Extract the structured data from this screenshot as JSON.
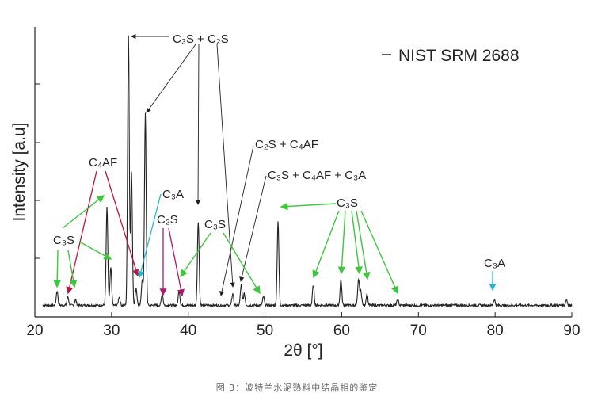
{
  "caption": "图 3：波特兰水泥熟料中结晶相的鉴定",
  "chart_data": {
    "type": "line",
    "title": "",
    "xlabel": "2θ [°]",
    "ylabel": "Intensity [a.u]",
    "xlim": [
      20,
      90
    ],
    "ylim": [
      0,
      100
    ],
    "xticks": [
      20,
      30,
      40,
      50,
      60,
      70,
      80,
      90
    ],
    "grid": false,
    "legend": {
      "position": "top-right",
      "entries": [
        "NIST SRM 2688"
      ]
    },
    "series": [
      {
        "name": "NIST SRM 2688",
        "baseline": 4,
        "peaks": [
          [
            22.9,
            9
          ],
          [
            24.3,
            7
          ],
          [
            25.3,
            6
          ],
          [
            29.4,
            38
          ],
          [
            29.9,
            17
          ],
          [
            31.0,
            7
          ],
          [
            32.2,
            97
          ],
          [
            32.6,
            50
          ],
          [
            33.2,
            10
          ],
          [
            34.0,
            13
          ],
          [
            34.4,
            70
          ],
          [
            36.6,
            8
          ],
          [
            38.8,
            9
          ],
          [
            41.3,
            33
          ],
          [
            45.8,
            8
          ],
          [
            46.9,
            11
          ],
          [
            47.3,
            8
          ],
          [
            49.8,
            7
          ],
          [
            51.7,
            33
          ],
          [
            56.3,
            11
          ],
          [
            59.9,
            13
          ],
          [
            62.2,
            13
          ],
          [
            62.5,
            9
          ],
          [
            63.3,
            8
          ],
          [
            67.3,
            6
          ],
          [
            79.9,
            6
          ],
          [
            89.3,
            6
          ]
        ]
      }
    ],
    "annotations": [
      {
        "text": "C₃S + C₂S",
        "color": "#222222"
      },
      {
        "text": "C₂S + C₄AF",
        "color": "#222222"
      },
      {
        "text": "C₃S + C₄AF + C₃A",
        "color": "#222222"
      },
      {
        "text": "C₄AF",
        "color": "#c0143c"
      },
      {
        "text": "C₃A",
        "color": "#29b6d6"
      },
      {
        "text": "C₂S",
        "color": "#b0186e"
      },
      {
        "text": "C₃S",
        "color": "#3cc83c"
      },
      {
        "text": "C₃S",
        "color": "#3cc83c"
      },
      {
        "text": "C₃S",
        "color": "#3cc83c"
      },
      {
        "text": "C₃A",
        "color": "#29b6d6"
      }
    ]
  }
}
